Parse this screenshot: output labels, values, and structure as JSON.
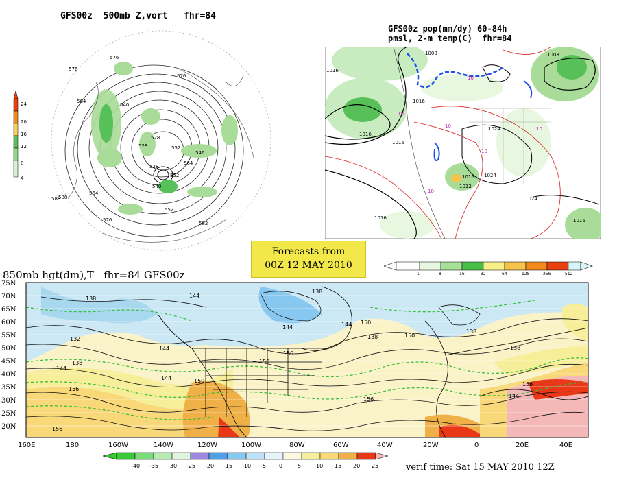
{
  "panel1": {
    "title": "GFS00z  500mb Z,vort   fhr=84",
    "colorbar_ticks": [
      "24",
      "20",
      "16",
      "12",
      "8",
      "4"
    ],
    "contour_labels": [
      "588",
      "576",
      "564",
      "540",
      "528",
      "552",
      "564",
      "582",
      "540",
      "552",
      "564",
      "576",
      "588",
      "546",
      "552",
      "576",
      "528",
      "528",
      "576"
    ]
  },
  "panel2": {
    "title_line1": "GFS00z pop(mm/dy) 60-84h",
    "title_line2": "pmsl, 2-m temp(C)  fhr=84",
    "pressure_labels": [
      "1016",
      "1016",
      "1016",
      "1016",
      "1008",
      "1024",
      "1024",
      "1016",
      "1012",
      "1016",
      "1024",
      "1008",
      "1016"
    ],
    "temp_labels": [
      "10",
      "10",
      "10",
      "10",
      "10",
      "10"
    ],
    "colorbar_ticks": [
      "1",
      "8",
      "16",
      "32",
      "64",
      "128",
      "256",
      "512"
    ],
    "colorbar_colors": [
      "#e8f8e0",
      "#a8e098",
      "#48c048",
      "#f7ee8a",
      "#f5c24a",
      "#f08a1c",
      "#e84010",
      "#d8f4f8"
    ]
  },
  "banner": {
    "line1": "Forecasts from",
    "line2": "00Z 12 MAY 2010"
  },
  "panel3": {
    "title": "850mb hgt(dm),T   fhr=84 GFS00z",
    "lat_labels": [
      "75N",
      "70N",
      "65N",
      "60N",
      "55N",
      "50N",
      "45N",
      "40N",
      "35N",
      "30N",
      "25N",
      "20N"
    ],
    "lon_labels": [
      "160E",
      "180",
      "160W",
      "140W",
      "120W",
      "100W",
      "80W",
      "60W",
      "40W",
      "20W",
      "0",
      "20E",
      "40E"
    ],
    "height_labels": [
      "138",
      "144",
      "138",
      "132",
      "138",
      "144",
      "144",
      "150",
      "156",
      "138",
      "144",
      "150",
      "150",
      "156",
      "156",
      "138",
      "144",
      "150",
      "144",
      "150",
      "156",
      "138",
      "144"
    ],
    "colorbar_ticks": [
      "-40",
      "-35",
      "-30",
      "-25",
      "-20",
      "-15",
      "-10",
      "-5",
      "0",
      "5",
      "10",
      "15",
      "20",
      "25"
    ],
    "colorbar_colors": [
      "#38c838",
      "#78dc78",
      "#b4ecb4",
      "#e0f4e0",
      "#a088e0",
      "#50a0e8",
      "#88c8f0",
      "#bce0f4",
      "#e4f4fa",
      "#fafae0",
      "#f6ee98",
      "#f8d878",
      "#f0b048",
      "#e83818",
      "#f4b8b8"
    ],
    "verif_time": "verif time: Sat 15 MAY 2010 12Z"
  }
}
